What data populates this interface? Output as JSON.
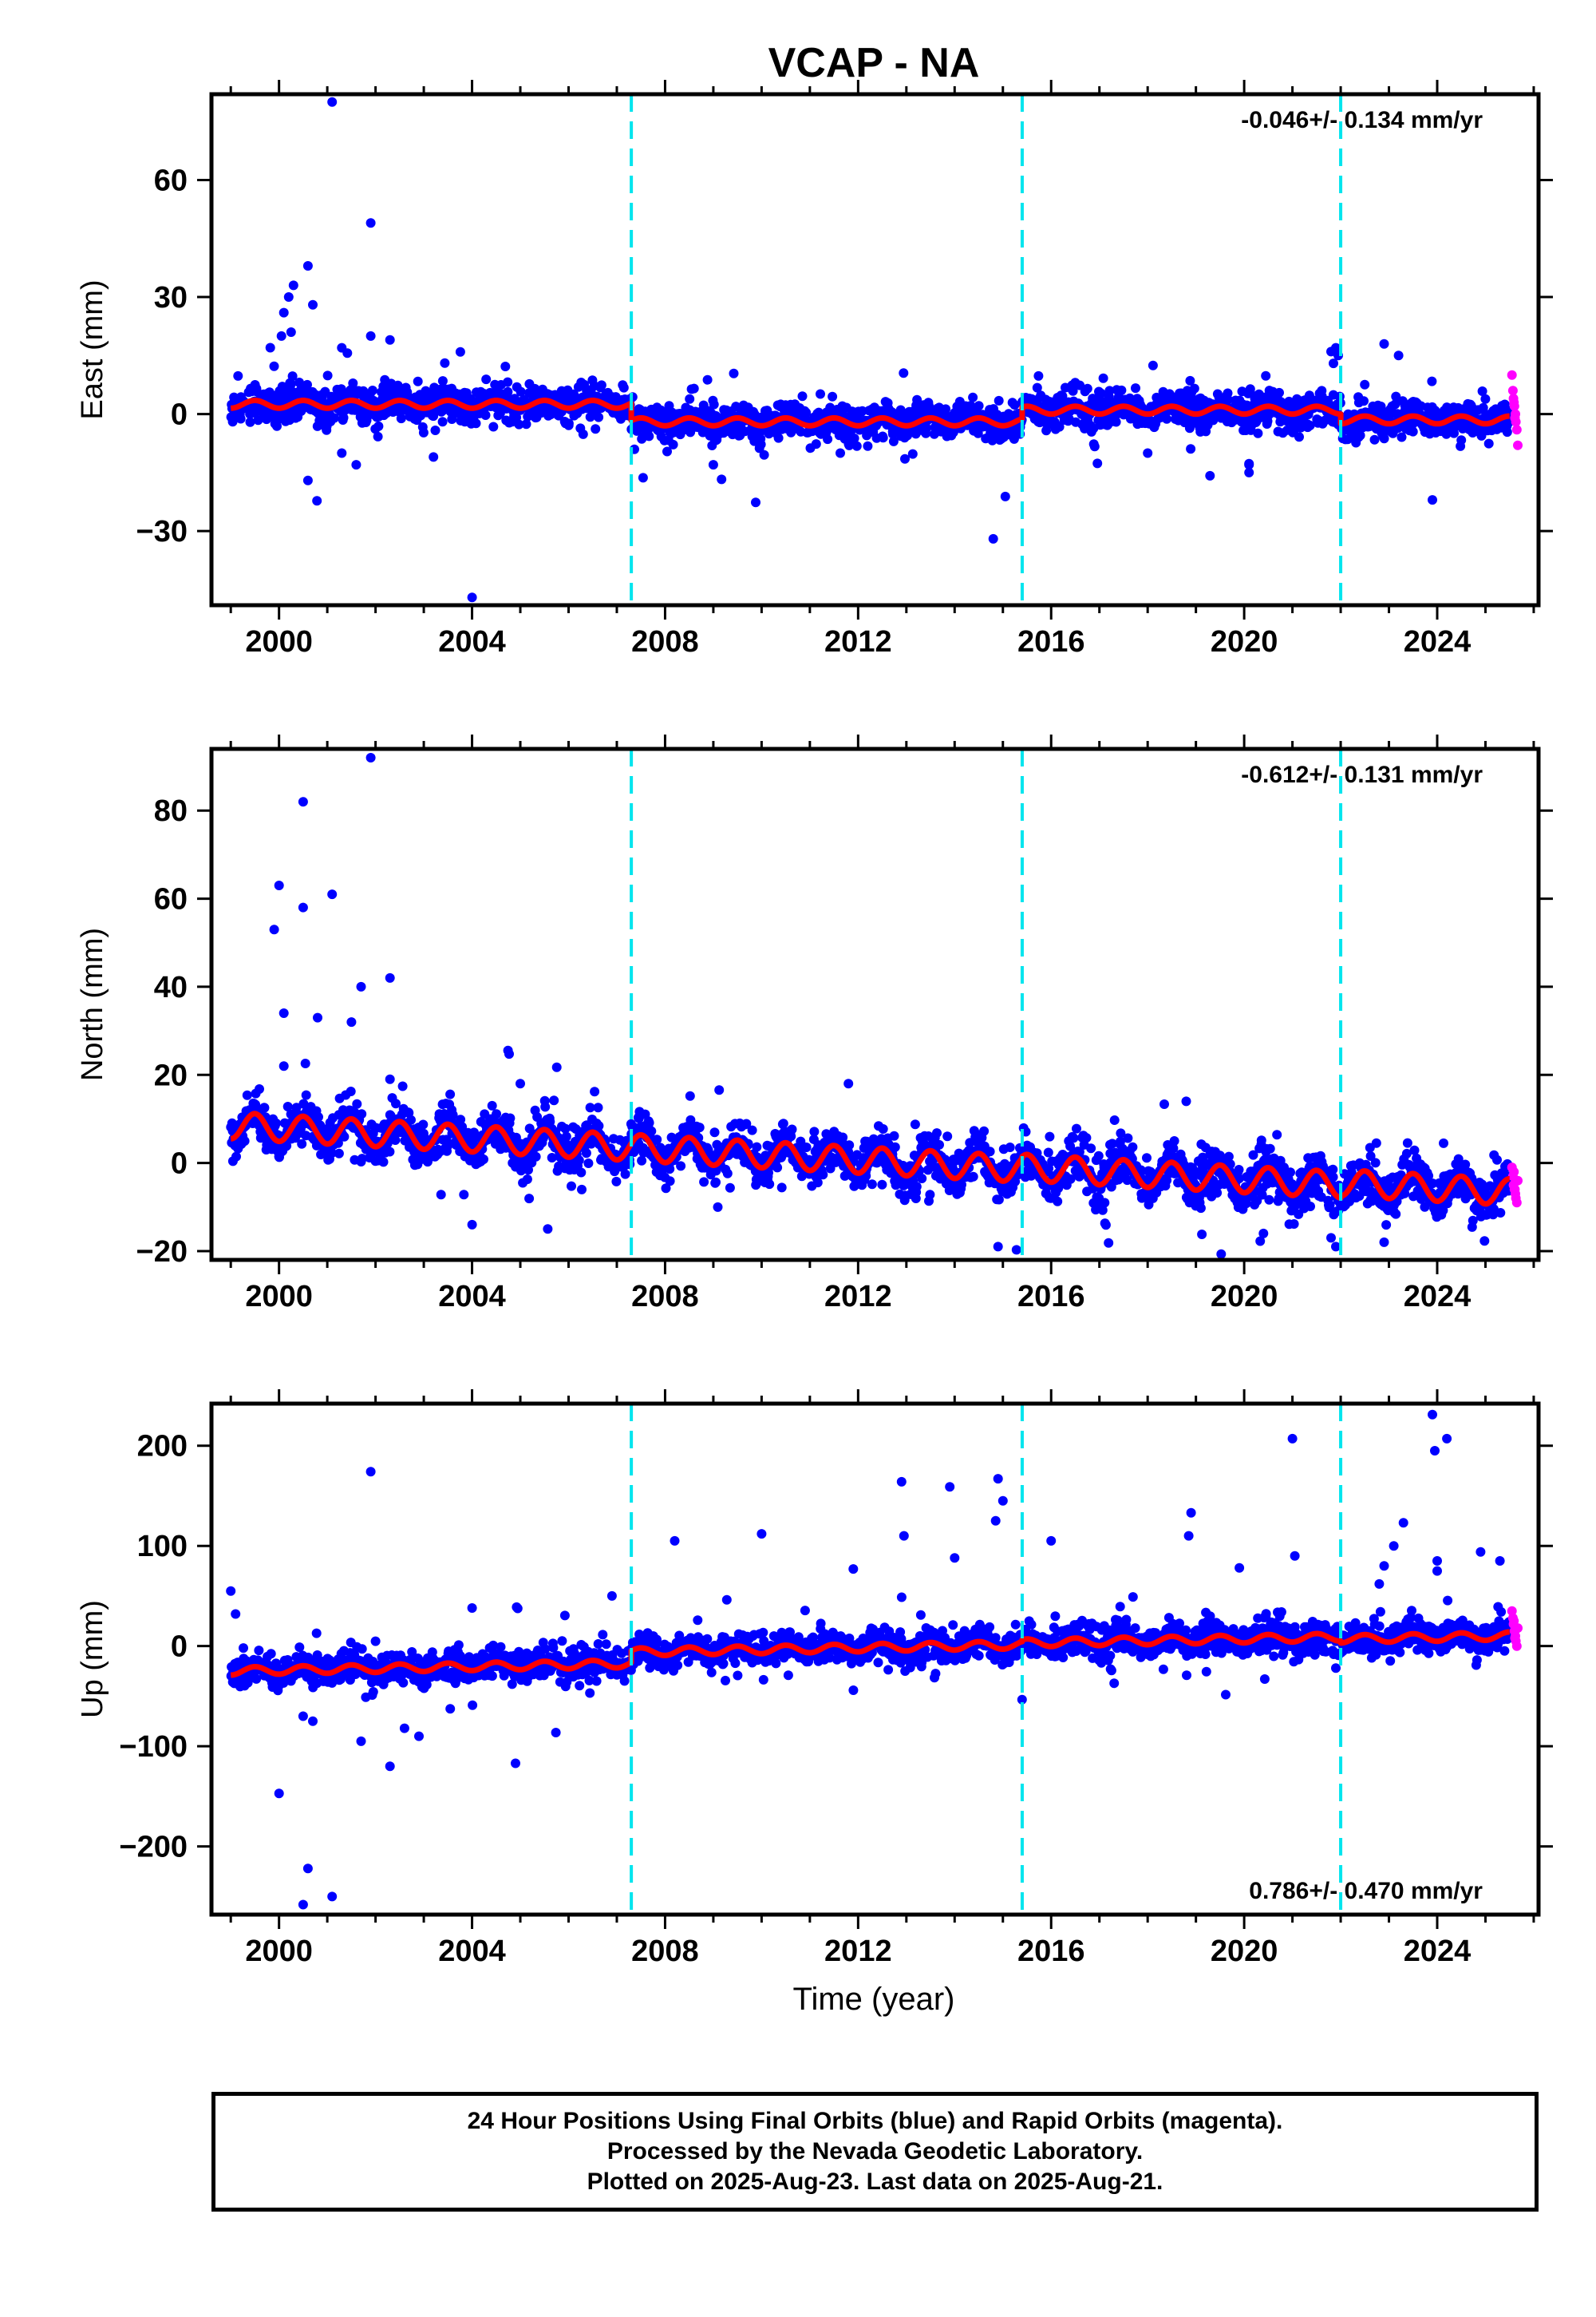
{
  "title": "VCAP - NA",
  "xlabel": "Time (year)",
  "colors": {
    "final": "#0000ff",
    "rapid": "#ff00ff",
    "model": "#ff0000",
    "offset": "#00e5ee"
  },
  "footer": {
    "line1": "24 Hour Positions Using Final Orbits (blue) and Rapid Orbits (magenta).",
    "line2": "Processed by the Nevada Geodetic Laboratory.",
    "line3": "Plotted on 2025-Aug-23. Last data on 2025-Aug-21."
  },
  "chart_data": [
    {
      "type": "scatter",
      "component": "east",
      "ylabel": "East (mm)",
      "rate": "-0.046+/- 0.134 mm/yr",
      "rate_position": "top-right",
      "xlim": [
        1998.6,
        2026.1
      ],
      "ylim": [
        -49,
        82
      ],
      "xticks": [
        2000,
        2004,
        2008,
        2012,
        2016,
        2020,
        2024
      ],
      "yticks": [
        -30,
        0,
        30,
        60
      ],
      "offsets": [
        2007.3,
        2015.4,
        2022.0
      ],
      "segments": [
        {
          "start": 1999.0,
          "end": 2007.3,
          "level": 2.5,
          "amp": 1.0,
          "noise": 2.2,
          "spike_pct": 0.06
        },
        {
          "start": 2007.3,
          "end": 2015.4,
          "level": -2.0,
          "amp": 1.0,
          "noise": 2.2,
          "spike_pct": 0.06
        },
        {
          "start": 2015.4,
          "end": 2022.0,
          "level": 1.0,
          "amp": 1.0,
          "noise": 2.2,
          "spike_pct": 0.06
        },
        {
          "start": 2022.0,
          "end": 2025.5,
          "level": -1.5,
          "amp": 1.0,
          "noise": 2.0,
          "spike_pct": 0.06
        }
      ],
      "outliers": [
        [
          2001.1,
          80
        ],
        [
          2001.9,
          49
        ],
        [
          2000.6,
          38
        ],
        [
          2000.3,
          33
        ],
        [
          2000.2,
          30
        ],
        [
          2000.1,
          26
        ],
        [
          2000.7,
          28
        ],
        [
          2000.05,
          20
        ],
        [
          2000.25,
          21
        ],
        [
          2001.3,
          17
        ],
        [
          2001.9,
          20
        ],
        [
          2002.3,
          19
        ],
        [
          2000.6,
          -17
        ],
        [
          2001.6,
          -13
        ],
        [
          2001.3,
          -10
        ],
        [
          2004.0,
          -47
        ],
        [
          2014.8,
          -32
        ],
        [
          2020.1,
          -15
        ],
        [
          2020.1,
          -13
        ],
        [
          2022.9,
          18
        ],
        [
          2023.2,
          15
        ],
        [
          2023.9,
          -22
        ],
        [
          2021.8,
          16
        ],
        [
          2021.9,
          17
        ],
        [
          2021.95,
          15
        ],
        [
          2021.85,
          13
        ],
        [
          2009.0,
          -13
        ],
        [
          2003.2,
          -11
        ],
        [
          2018.0,
          -10
        ]
      ],
      "rapid": [
        [
          2025.55,
          10
        ],
        [
          2025.57,
          6
        ],
        [
          2025.58,
          4
        ],
        [
          2025.6,
          2
        ],
        [
          2025.62,
          0
        ],
        [
          2025.63,
          -2
        ],
        [
          2025.65,
          -4
        ],
        [
          2025.67,
          -8
        ],
        [
          2025.59,
          3
        ],
        [
          2025.61,
          -1
        ]
      ]
    },
    {
      "type": "scatter",
      "component": "north",
      "ylabel": "North (mm)",
      "rate": "-0.612+/- 0.131 mm/yr",
      "rate_position": "top-right",
      "xlim": [
        1998.6,
        2026.1
      ],
      "ylim": [
        -22,
        94
      ],
      "xticks": [
        2000,
        2004,
        2008,
        2012,
        2016,
        2020,
        2024
      ],
      "yticks": [
        -20,
        0,
        20,
        40,
        60,
        80
      ],
      "offsets": [
        2007.3,
        2015.4,
        2022.0
      ],
      "segments": [
        {
          "start": 1999.0,
          "end": 2007.3,
          "level": 8.5,
          "slope": -0.6,
          "amp": 3.0,
          "noise": 2.3,
          "spike_pct": 0.05
        },
        {
          "start": 2007.3,
          "end": 2015.4,
          "level": 3.5,
          "slope": -0.6,
          "amp": 3.0,
          "noise": 2.3,
          "spike_pct": 0.05
        },
        {
          "start": 2015.4,
          "end": 2022.0,
          "level": -1.0,
          "slope": -0.6,
          "amp": 3.0,
          "noise": 2.6,
          "spike_pct": 0.06
        },
        {
          "start": 2022.0,
          "end": 2025.5,
          "level": -4.5,
          "slope": -0.6,
          "amp": 3.0,
          "noise": 2.3,
          "spike_pct": 0.05
        }
      ],
      "outliers": [
        [
          2001.9,
          92
        ],
        [
          2000.5,
          82
        ],
        [
          2000.0,
          63
        ],
        [
          2000.5,
          58
        ],
        [
          2001.1,
          61
        ],
        [
          1999.9,
          53
        ],
        [
          2001.7,
          40
        ],
        [
          2002.3,
          42
        ],
        [
          2000.1,
          34
        ],
        [
          2000.8,
          33
        ],
        [
          2001.5,
          32
        ],
        [
          2000.1,
          22
        ],
        [
          2002.3,
          19
        ],
        [
          2005.0,
          18
        ],
        [
          2011.8,
          18
        ],
        [
          2018.8,
          14
        ],
        [
          2004.0,
          -14
        ],
        [
          2014.9,
          -19
        ],
        [
          2021.9,
          -19
        ],
        [
          2022.9,
          -18
        ],
        [
          2021.8,
          -17
        ],
        [
          2020.4,
          -16
        ]
      ],
      "rapid": [
        [
          2025.55,
          -1
        ],
        [
          2025.57,
          -3
        ],
        [
          2025.58,
          -5
        ],
        [
          2025.6,
          -6
        ],
        [
          2025.62,
          -7
        ],
        [
          2025.63,
          -8
        ],
        [
          2025.65,
          -9
        ],
        [
          2025.67,
          -4
        ],
        [
          2025.59,
          -2
        ],
        [
          2025.61,
          -6
        ]
      ]
    },
    {
      "type": "scatter",
      "component": "up",
      "ylabel": "Up (mm)",
      "rate": "0.786+/- 0.470 mm/yr",
      "rate_position": "bottom-right",
      "xlim": [
        1998.6,
        2026.1
      ],
      "ylim": [
        -268,
        242
      ],
      "xticks": [
        2000,
        2004,
        2008,
        2012,
        2016,
        2020,
        2024
      ],
      "yticks": [
        -200,
        -100,
        0,
        100,
        200
      ],
      "offsets": [
        2007.3,
        2015.4,
        2022.0
      ],
      "segments": [
        {
          "start": 1999.0,
          "end": 2007.3,
          "level": -25,
          "slope": 0.9,
          "amp": 4.0,
          "noise": 7.0,
          "spike_pct": 0.06
        },
        {
          "start": 2007.3,
          "end": 2015.4,
          "level": -6,
          "slope": 0.9,
          "amp": 4.0,
          "noise": 7.0,
          "spike_pct": 0.06
        },
        {
          "start": 2015.4,
          "end": 2022.0,
          "level": 3,
          "slope": 0.9,
          "amp": 4.0,
          "noise": 7.5,
          "spike_pct": 0.07
        },
        {
          "start": 2022.0,
          "end": 2025.5,
          "level": 7,
          "slope": 0.9,
          "amp": 4.0,
          "noise": 7.0,
          "spike_pct": 0.06
        }
      ],
      "outliers": [
        [
          2001.9,
          174
        ],
        [
          2000.0,
          -147
        ],
        [
          2000.6,
          -222
        ],
        [
          2000.5,
          -258
        ],
        [
          2001.1,
          -250
        ],
        [
          2000.5,
          -70
        ],
        [
          2000.7,
          -75
        ],
        [
          2001.7,
          -95
        ],
        [
          2002.3,
          -120
        ],
        [
          2002.6,
          -82
        ],
        [
          2002.9,
          -90
        ],
        [
          2004.9,
          -117
        ],
        [
          2004.0,
          38
        ],
        [
          2006.9,
          50
        ],
        [
          1999.0,
          55
        ],
        [
          1999.1,
          32
        ],
        [
          2008.2,
          105
        ],
        [
          2010.0,
          112
        ],
        [
          2011.9,
          77
        ],
        [
          2012.9,
          164
        ],
        [
          2012.95,
          110
        ],
        [
          2013.9,
          159
        ],
        [
          2014.0,
          88
        ],
        [
          2014.9,
          167
        ],
        [
          2014.85,
          125
        ],
        [
          2015.0,
          145
        ],
        [
          2016.0,
          105
        ],
        [
          2018.9,
          133
        ],
        [
          2018.85,
          110
        ],
        [
          2019.9,
          78
        ],
        [
          2021.0,
          207
        ],
        [
          2021.05,
          90
        ],
        [
          2022.8,
          62
        ],
        [
          2022.9,
          80
        ],
        [
          2023.1,
          100
        ],
        [
          2023.3,
          123
        ],
        [
          2023.9,
          231
        ],
        [
          2023.95,
          195
        ],
        [
          2024.2,
          207
        ],
        [
          2024.0,
          85
        ],
        [
          2024.9,
          94
        ],
        [
          2025.3,
          85
        ],
        [
          2024.0,
          75
        ],
        [
          2021.9,
          -22
        ]
      ],
      "rapid": [
        [
          2025.55,
          35
        ],
        [
          2025.57,
          28
        ],
        [
          2025.58,
          22
        ],
        [
          2025.6,
          15
        ],
        [
          2025.62,
          10
        ],
        [
          2025.63,
          5
        ],
        [
          2025.65,
          0
        ],
        [
          2025.67,
          18
        ],
        [
          2025.59,
          25
        ],
        [
          2025.61,
          8
        ]
      ]
    }
  ]
}
